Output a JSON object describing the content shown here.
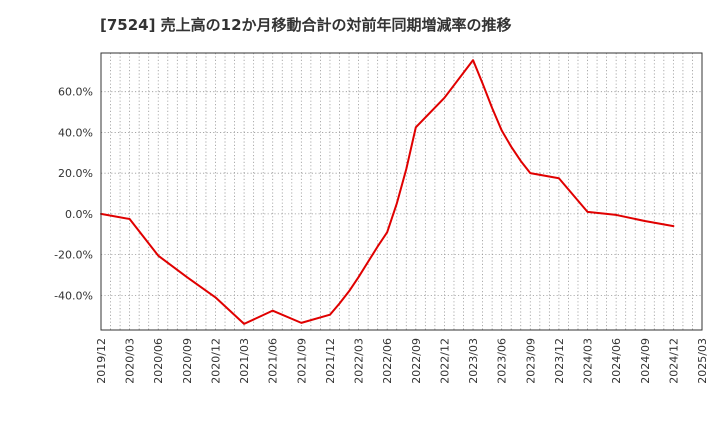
{
  "chart_data": {
    "type": "line",
    "title": "[7524]  売上高の12か月移動合計の対前年同期増減率の推移",
    "xlabel": "",
    "ylabel": "",
    "x_tick_labels": [
      "2019/12",
      "2020/03",
      "2020/06",
      "2020/09",
      "2020/12",
      "2021/03",
      "2021/06",
      "2021/09",
      "2021/12",
      "2022/03",
      "2022/06",
      "2022/09",
      "2022/12",
      "2023/03",
      "2023/06",
      "2023/09",
      "2023/12",
      "2024/03",
      "2024/06",
      "2024/09",
      "2024/12",
      "2025/03"
    ],
    "y_tick_labels": [
      "60.0%",
      "40.0%",
      "20.0%",
      "0.0%",
      "-20.0%",
      "-40.0%"
    ],
    "y_ticks": [
      60,
      40,
      20,
      0,
      -20,
      -40
    ],
    "ylim": [
      -57,
      79
    ],
    "grid": true,
    "series": [
      {
        "name": "対前年同期増減率",
        "color": "#e00000",
        "x": [
          "2019/12",
          "2020/03",
          "2020/06",
          "2020/09",
          "2020/12",
          "2021/03",
          "2021/06",
          "2021/09",
          "2021/12",
          "2022/01",
          "2022/02",
          "2022/03",
          "2022/04",
          "2022/05",
          "2022/06",
          "2022/07",
          "2022/08",
          "2022/09",
          "2022/12",
          "2023/03",
          "2023/04",
          "2023/05",
          "2023/06",
          "2023/07",
          "2023/08",
          "2023/09",
          "2023/12",
          "2024/03",
          "2024/06",
          "2024/09",
          "2024/12"
        ],
        "values": [
          0.0,
          -2.5,
          -20.5,
          -31.0,
          -41.0,
          -54.0,
          -47.5,
          -53.5,
          -49.5,
          -44.0,
          -38.0,
          -31.0,
          -23.5,
          -16.0,
          -9.0,
          5.0,
          22.0,
          42.5,
          57.0,
          75.5,
          64.0,
          52.0,
          41.0,
          33.0,
          26.0,
          20.0,
          17.5,
          1.0,
          -0.5,
          -3.5,
          -6.0
        ]
      }
    ]
  }
}
